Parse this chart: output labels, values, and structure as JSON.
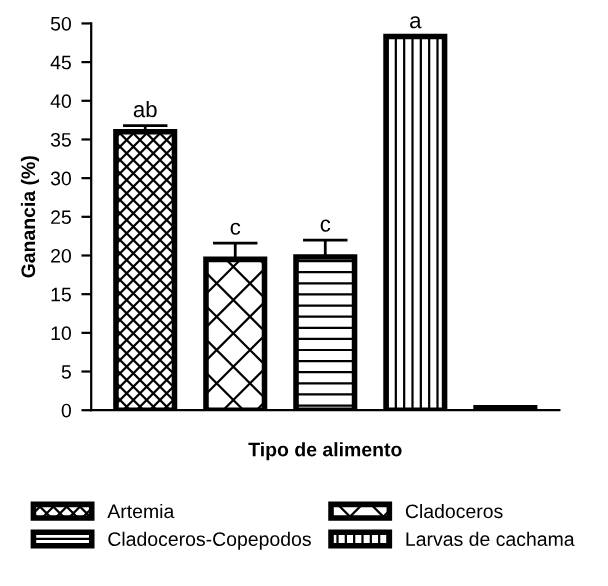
{
  "chart_data": {
    "type": "bar",
    "xlabel": "Tipo de alimento",
    "ylabel": "Ganancia (%)",
    "categories": [
      null,
      null,
      null,
      null,
      null
    ],
    "series": [
      {
        "name": "Artemia",
        "color": "#000000",
        "values": [
          36,
          null,
          null,
          null,
          null
        ],
        "errors": [
          0.8,
          null,
          null,
          null,
          null
        ],
        "value_labels": [
          "ab",
          null,
          null,
          null,
          null
        ]
      },
      {
        "name": "Cladoceros",
        "color": "#000000",
        "values": [
          null,
          19.5,
          null,
          null,
          null
        ],
        "errors": [
          null,
          2.1,
          null,
          null,
          null
        ],
        "value_labels": [
          null,
          "c",
          null,
          null,
          null
        ]
      },
      {
        "name": "Cladoceros-Copepodos",
        "color": "#000000",
        "values": [
          null,
          null,
          19.8,
          null,
          null
        ],
        "errors": [
          null,
          null,
          2.2,
          null,
          null
        ],
        "value_labels": [
          null,
          null,
          "c",
          null,
          null
        ]
      },
      {
        "name": "Larvas de cachama",
        "color": "#000000",
        "values": [
          null,
          null,
          null,
          48.3,
          null
        ],
        "value_labels": [
          null,
          null,
          null,
          "a",
          null
        ]
      },
      {
        "color": "#000000",
        "values": [
          null,
          null,
          null,
          null,
          0.3
        ]
      }
    ],
    "ylim": [
      0,
      50
    ],
    "yticks": [
      0,
      5,
      10,
      15,
      20,
      25,
      30,
      35,
      40,
      45,
      50
    ],
    "grid": false,
    "legend": "bottom"
  }
}
